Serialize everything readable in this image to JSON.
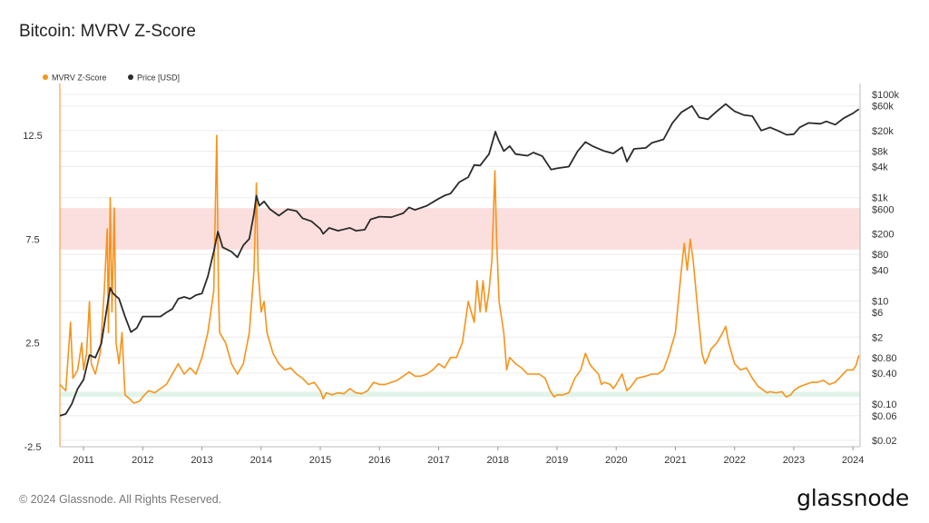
{
  "title": "Bitcoin: MVRV Z-Score",
  "footer": "© 2024 Glassnode. All Rights Reserved.",
  "logo": "glassnode",
  "colors": {
    "zscore": "#f7931a",
    "price": "#2b2b2b",
    "red_band": "#fbdcdc",
    "green_band": "#dff3e7"
  },
  "chart_data": {
    "type": "line",
    "title": "Bitcoin: MVRV Z-Score",
    "legend_position": "top-left",
    "grid": true,
    "x_ticks": [
      "2011",
      "2012",
      "2013",
      "2014",
      "2015",
      "2016",
      "2017",
      "2018",
      "2019",
      "2020",
      "2021",
      "2022",
      "2023",
      "2024"
    ],
    "y_left": {
      "ticks": [
        "12.5",
        "7.5",
        "2.5",
        "-2.5"
      ],
      "range": [
        -2.5,
        15
      ]
    },
    "y_right": {
      "scale": "log",
      "ticks": [
        "$100k",
        "$60k",
        "$20k",
        "$8k",
        "$4k",
        "$1k",
        "$600",
        "$200",
        "$80",
        "$40",
        "$10",
        "$6",
        "$2",
        "$0.80",
        "$0.40",
        "$0.10",
        "$0.06",
        "$0.02"
      ],
      "range": [
        0.02,
        100000
      ]
    },
    "bands": [
      {
        "axis": "left",
        "from": 7.0,
        "to": 9.0
      },
      {
        "axis": "left",
        "from": -0.1,
        "to": 0.15
      }
    ],
    "series": [
      {
        "name": "MVRV Z-Score",
        "axis": "left",
        "points": [
          [
            2010.6,
            0.5
          ],
          [
            2010.7,
            0.2
          ],
          [
            2010.78,
            3.5
          ],
          [
            2010.82,
            0.8
          ],
          [
            2010.9,
            1.2
          ],
          [
            2010.97,
            2.5
          ],
          [
            2011.0,
            1.2
          ],
          [
            2011.05,
            2.0
          ],
          [
            2011.1,
            4.5
          ],
          [
            2011.13,
            1.5
          ],
          [
            2011.2,
            1.0
          ],
          [
            2011.28,
            2.0
          ],
          [
            2011.35,
            5.0
          ],
          [
            2011.4,
            8.0
          ],
          [
            2011.42,
            3.0
          ],
          [
            2011.45,
            9.5
          ],
          [
            2011.48,
            4.0
          ],
          [
            2011.52,
            9.0
          ],
          [
            2011.55,
            2.5
          ],
          [
            2011.6,
            1.5
          ],
          [
            2011.65,
            3.0
          ],
          [
            2011.7,
            0.0
          ],
          [
            2011.78,
            -0.2
          ],
          [
            2011.85,
            -0.4
          ],
          [
            2011.95,
            -0.3
          ],
          [
            2012.0,
            -0.1
          ],
          [
            2012.1,
            0.2
          ],
          [
            2012.2,
            0.1
          ],
          [
            2012.3,
            0.3
          ],
          [
            2012.4,
            0.5
          ],
          [
            2012.5,
            1.0
          ],
          [
            2012.6,
            1.5
          ],
          [
            2012.7,
            1.0
          ],
          [
            2012.8,
            1.3
          ],
          [
            2012.9,
            1.0
          ],
          [
            2013.0,
            1.8
          ],
          [
            2013.1,
            3.0
          ],
          [
            2013.2,
            5.0
          ],
          [
            2013.25,
            12.5
          ],
          [
            2013.28,
            5.0
          ],
          [
            2013.3,
            3.0
          ],
          [
            2013.4,
            2.5
          ],
          [
            2013.5,
            1.5
          ],
          [
            2013.6,
            1.0
          ],
          [
            2013.7,
            1.5
          ],
          [
            2013.8,
            3.0
          ],
          [
            2013.88,
            6.0
          ],
          [
            2013.92,
            10.2
          ],
          [
            2013.95,
            6.0
          ],
          [
            2014.0,
            4.0
          ],
          [
            2014.05,
            4.5
          ],
          [
            2014.1,
            3.0
          ],
          [
            2014.2,
            2.0
          ],
          [
            2014.3,
            1.5
          ],
          [
            2014.4,
            1.2
          ],
          [
            2014.5,
            1.3
          ],
          [
            2014.6,
            1.0
          ],
          [
            2014.7,
            0.8
          ],
          [
            2014.8,
            0.5
          ],
          [
            2014.9,
            0.6
          ],
          [
            2015.0,
            0.2
          ],
          [
            2015.05,
            -0.2
          ],
          [
            2015.1,
            0.1
          ],
          [
            2015.2,
            0.0
          ],
          [
            2015.3,
            0.1
          ],
          [
            2015.4,
            0.05
          ],
          [
            2015.5,
            0.3
          ],
          [
            2015.6,
            0.1
          ],
          [
            2015.7,
            0.05
          ],
          [
            2015.8,
            0.2
          ],
          [
            2015.9,
            0.6
          ],
          [
            2016.0,
            0.5
          ],
          [
            2016.1,
            0.5
          ],
          [
            2016.2,
            0.6
          ],
          [
            2016.3,
            0.7
          ],
          [
            2016.4,
            0.9
          ],
          [
            2016.5,
            1.1
          ],
          [
            2016.6,
            0.9
          ],
          [
            2016.7,
            0.9
          ],
          [
            2016.8,
            1.0
          ],
          [
            2016.9,
            1.2
          ],
          [
            2017.0,
            1.5
          ],
          [
            2017.1,
            1.3
          ],
          [
            2017.2,
            1.8
          ],
          [
            2017.3,
            1.8
          ],
          [
            2017.4,
            2.5
          ],
          [
            2017.45,
            3.5
          ],
          [
            2017.5,
            4.5
          ],
          [
            2017.55,
            4.0
          ],
          [
            2017.6,
            3.5
          ],
          [
            2017.65,
            5.5
          ],
          [
            2017.7,
            4.0
          ],
          [
            2017.75,
            5.5
          ],
          [
            2017.8,
            4.0
          ],
          [
            2017.85,
            5.0
          ],
          [
            2017.9,
            6.5
          ],
          [
            2017.95,
            10.8
          ],
          [
            2017.98,
            7.5
          ],
          [
            2018.02,
            4.5
          ],
          [
            2018.1,
            3.0
          ],
          [
            2018.15,
            1.2
          ],
          [
            2018.2,
            1.8
          ],
          [
            2018.3,
            1.5
          ],
          [
            2018.4,
            1.3
          ],
          [
            2018.5,
            1.0
          ],
          [
            2018.6,
            1.0
          ],
          [
            2018.7,
            1.0
          ],
          [
            2018.8,
            0.8
          ],
          [
            2018.88,
            0.2
          ],
          [
            2018.95,
            -0.1
          ],
          [
            2019.0,
            0.0
          ],
          [
            2019.1,
            0.0
          ],
          [
            2019.2,
            0.1
          ],
          [
            2019.3,
            0.8
          ],
          [
            2019.4,
            1.2
          ],
          [
            2019.48,
            2.0
          ],
          [
            2019.55,
            1.5
          ],
          [
            2019.6,
            1.3
          ],
          [
            2019.7,
            1.0
          ],
          [
            2019.75,
            0.5
          ],
          [
            2019.8,
            0.6
          ],
          [
            2019.9,
            0.5
          ],
          [
            2019.95,
            0.3
          ],
          [
            2020.0,
            0.5
          ],
          [
            2020.1,
            1.0
          ],
          [
            2020.18,
            0.2
          ],
          [
            2020.25,
            0.4
          ],
          [
            2020.35,
            0.8
          ],
          [
            2020.5,
            0.9
          ],
          [
            2020.6,
            1.0
          ],
          [
            2020.7,
            1.0
          ],
          [
            2020.8,
            1.2
          ],
          [
            2020.9,
            2.0
          ],
          [
            2021.0,
            3.0
          ],
          [
            2021.05,
            4.5
          ],
          [
            2021.1,
            6.0
          ],
          [
            2021.15,
            7.3
          ],
          [
            2021.2,
            6.0
          ],
          [
            2021.25,
            7.5
          ],
          [
            2021.3,
            6.5
          ],
          [
            2021.38,
            4.0
          ],
          [
            2021.45,
            2.0
          ],
          [
            2021.5,
            1.5
          ],
          [
            2021.55,
            1.8
          ],
          [
            2021.6,
            2.2
          ],
          [
            2021.7,
            2.5
          ],
          [
            2021.8,
            3.0
          ],
          [
            2021.85,
            3.3
          ],
          [
            2021.9,
            2.5
          ],
          [
            2022.0,
            1.5
          ],
          [
            2022.1,
            1.2
          ],
          [
            2022.2,
            1.3
          ],
          [
            2022.3,
            0.8
          ],
          [
            2022.4,
            0.4
          ],
          [
            2022.5,
            0.2
          ],
          [
            2022.55,
            0.1
          ],
          [
            2022.6,
            0.15
          ],
          [
            2022.7,
            0.1
          ],
          [
            2022.8,
            0.15
          ],
          [
            2022.87,
            -0.1
          ],
          [
            2022.95,
            0.0
          ],
          [
            2023.0,
            0.2
          ],
          [
            2023.1,
            0.4
          ],
          [
            2023.2,
            0.5
          ],
          [
            2023.3,
            0.6
          ],
          [
            2023.4,
            0.6
          ],
          [
            2023.5,
            0.7
          ],
          [
            2023.6,
            0.5
          ],
          [
            2023.7,
            0.6
          ],
          [
            2023.8,
            0.9
          ],
          [
            2023.9,
            1.2
          ],
          [
            2024.0,
            1.2
          ],
          [
            2024.05,
            1.4
          ],
          [
            2024.1,
            1.9
          ]
        ]
      },
      {
        "name": "Price [USD]",
        "axis": "right",
        "points": [
          [
            2010.6,
            0.06
          ],
          [
            2010.7,
            0.065
          ],
          [
            2010.8,
            0.1
          ],
          [
            2010.9,
            0.2
          ],
          [
            2011.0,
            0.3
          ],
          [
            2011.1,
            0.9
          ],
          [
            2011.2,
            0.8
          ],
          [
            2011.3,
            1.5
          ],
          [
            2011.4,
            8.0
          ],
          [
            2011.45,
            18.0
          ],
          [
            2011.5,
            14.0
          ],
          [
            2011.6,
            11.0
          ],
          [
            2011.7,
            5.0
          ],
          [
            2011.8,
            2.5
          ],
          [
            2011.9,
            3.0
          ],
          [
            2012.0,
            5.0
          ],
          [
            2012.1,
            5.0
          ],
          [
            2012.2,
            5.0
          ],
          [
            2012.3,
            5.0
          ],
          [
            2012.4,
            6.0
          ],
          [
            2012.5,
            7.0
          ],
          [
            2012.6,
            11.0
          ],
          [
            2012.7,
            12.0
          ],
          [
            2012.8,
            11.0
          ],
          [
            2012.9,
            13.0
          ],
          [
            2013.0,
            14.0
          ],
          [
            2013.1,
            30.0
          ],
          [
            2013.2,
            90.0
          ],
          [
            2013.27,
            220.0
          ],
          [
            2013.35,
            110.0
          ],
          [
            2013.5,
            90.0
          ],
          [
            2013.6,
            70.0
          ],
          [
            2013.7,
            120.0
          ],
          [
            2013.8,
            160.0
          ],
          [
            2013.88,
            500.0
          ],
          [
            2013.92,
            1100.0
          ],
          [
            2013.97,
            700.0
          ],
          [
            2014.05,
            850.0
          ],
          [
            2014.15,
            600.0
          ],
          [
            2014.3,
            450.0
          ],
          [
            2014.45,
            600.0
          ],
          [
            2014.6,
            550.0
          ],
          [
            2014.7,
            400.0
          ],
          [
            2014.85,
            350.0
          ],
          [
            2015.0,
            250.0
          ],
          [
            2015.05,
            200.0
          ],
          [
            2015.15,
            260.0
          ],
          [
            2015.3,
            230.0
          ],
          [
            2015.5,
            260.0
          ],
          [
            2015.6,
            230.0
          ],
          [
            2015.75,
            240.0
          ],
          [
            2015.85,
            380.0
          ],
          [
            2016.0,
            430.0
          ],
          [
            2016.2,
            420.0
          ],
          [
            2016.4,
            500.0
          ],
          [
            2016.5,
            650.0
          ],
          [
            2016.6,
            580.0
          ],
          [
            2016.8,
            700.0
          ],
          [
            2017.0,
            960.0
          ],
          [
            2017.1,
            1100.0
          ],
          [
            2017.2,
            1200.0
          ],
          [
            2017.35,
            2000.0
          ],
          [
            2017.5,
            2500.0
          ],
          [
            2017.6,
            4300.0
          ],
          [
            2017.7,
            4200.0
          ],
          [
            2017.85,
            7000.0
          ],
          [
            2017.96,
            19000.0
          ],
          [
            2018.0,
            14000.0
          ],
          [
            2018.1,
            8000.0
          ],
          [
            2018.2,
            10000.0
          ],
          [
            2018.3,
            7000.0
          ],
          [
            2018.5,
            6500.0
          ],
          [
            2018.6,
            7500.0
          ],
          [
            2018.75,
            6400.0
          ],
          [
            2018.9,
            3500.0
          ],
          [
            2019.0,
            3700.0
          ],
          [
            2019.2,
            4000.0
          ],
          [
            2019.35,
            8000.0
          ],
          [
            2019.48,
            12000.0
          ],
          [
            2019.6,
            10000.0
          ],
          [
            2019.8,
            8000.0
          ],
          [
            2019.95,
            7200.0
          ],
          [
            2020.1,
            9500.0
          ],
          [
            2020.18,
            5000.0
          ],
          [
            2020.3,
            8800.0
          ],
          [
            2020.5,
            9200.0
          ],
          [
            2020.6,
            11500.0
          ],
          [
            2020.8,
            13500.0
          ],
          [
            2020.95,
            28000.0
          ],
          [
            2021.1,
            45000.0
          ],
          [
            2021.28,
            60000.0
          ],
          [
            2021.4,
            36000.0
          ],
          [
            2021.55,
            33000.0
          ],
          [
            2021.7,
            47000.0
          ],
          [
            2021.85,
            65000.0
          ],
          [
            2022.0,
            47000.0
          ],
          [
            2022.15,
            40000.0
          ],
          [
            2022.3,
            38000.0
          ],
          [
            2022.45,
            20000.0
          ],
          [
            2022.6,
            23000.0
          ],
          [
            2022.75,
            19500.0
          ],
          [
            2022.88,
            16500.0
          ],
          [
            2023.0,
            17000.0
          ],
          [
            2023.1,
            23000.0
          ],
          [
            2023.25,
            28000.0
          ],
          [
            2023.45,
            27000.0
          ],
          [
            2023.55,
            30000.0
          ],
          [
            2023.7,
            26000.0
          ],
          [
            2023.85,
            35000.0
          ],
          [
            2024.0,
            43000.0
          ],
          [
            2024.1,
            52000.0
          ]
        ]
      }
    ]
  }
}
